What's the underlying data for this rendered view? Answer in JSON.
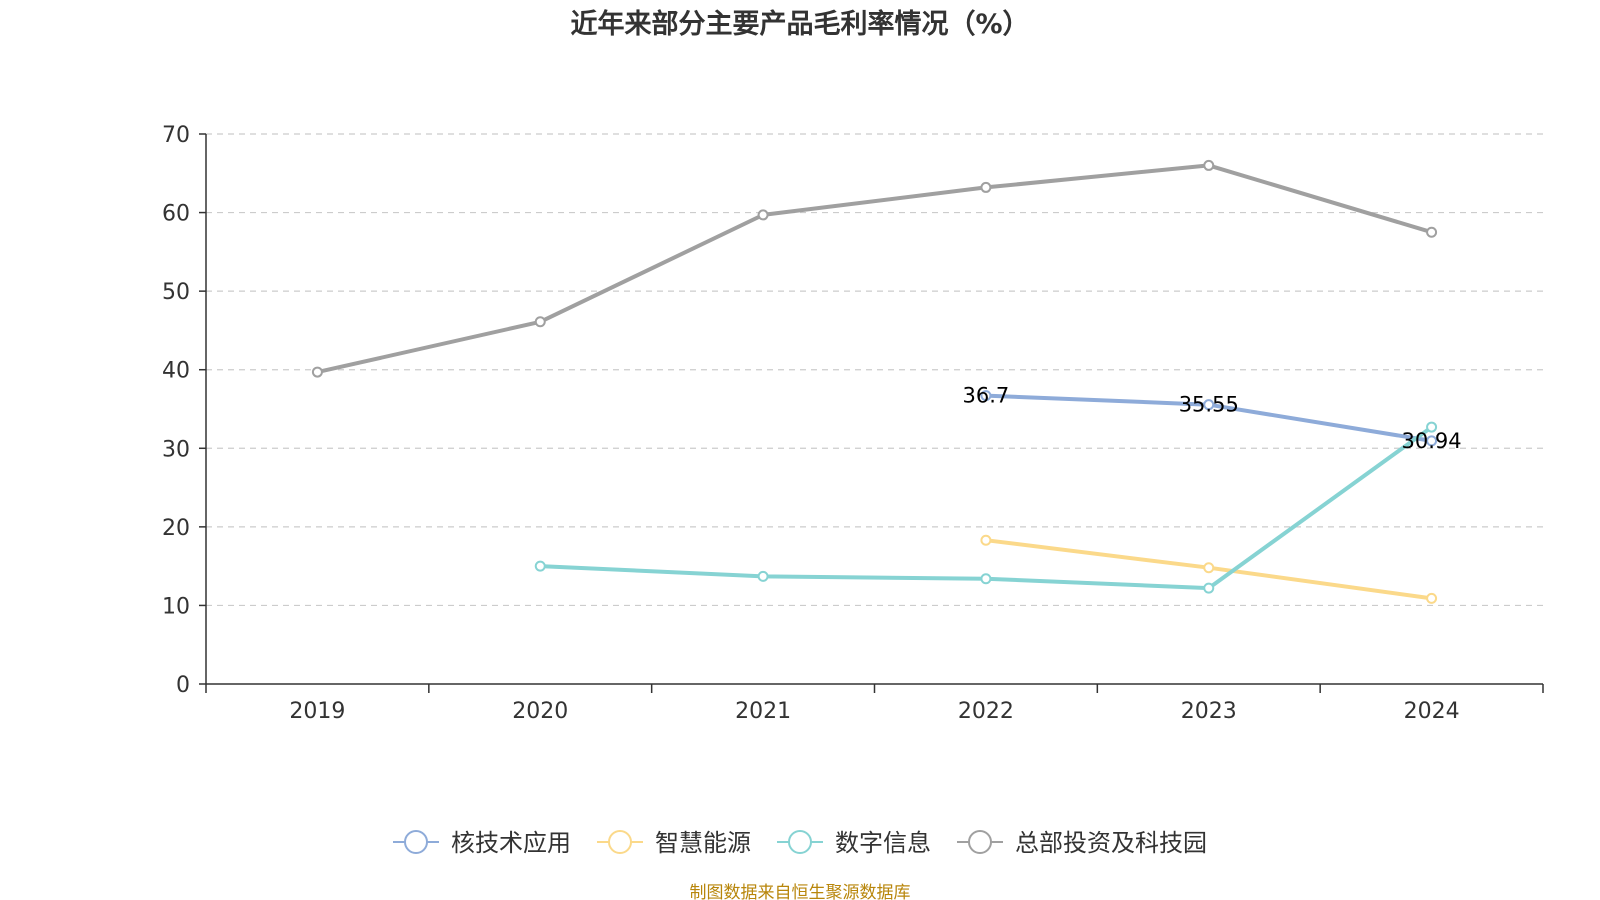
{
  "chart_data": {
    "type": "line",
    "title": "近年来部分主要产品毛利率情况（%）",
    "categories": [
      "2019",
      "2020",
      "2021",
      "2022",
      "2023",
      "2024"
    ],
    "ylim": [
      0,
      70
    ],
    "yticks": [
      0,
      10,
      20,
      30,
      40,
      50,
      60,
      70
    ],
    "grid": true,
    "legend_position": "bottom-center",
    "series": [
      {
        "name": "核技术应用",
        "color": "#8eabd9",
        "values": [
          null,
          null,
          null,
          36.7,
          35.55,
          30.94
        ],
        "labels": [
          null,
          null,
          null,
          "36.7",
          "35.55",
          "30.94"
        ]
      },
      {
        "name": "智慧能源",
        "color": "#fbd98a",
        "values": [
          null,
          null,
          null,
          18.3,
          14.8,
          10.9
        ],
        "labels": [
          null,
          null,
          null,
          null,
          null,
          null
        ]
      },
      {
        "name": "数字信息",
        "color": "#86d3d3",
        "values": [
          null,
          15.0,
          13.7,
          13.4,
          12.2,
          32.7
        ],
        "labels": [
          null,
          null,
          null,
          null,
          null,
          null
        ]
      },
      {
        "name": "总部投资及科技园",
        "color": "#a0a0a0",
        "values": [
          39.7,
          46.1,
          59.7,
          63.2,
          66.0,
          57.5
        ],
        "labels": [
          null,
          null,
          null,
          null,
          null,
          null
        ]
      }
    ],
    "source": "制图数据来自恒生聚源数据库"
  }
}
